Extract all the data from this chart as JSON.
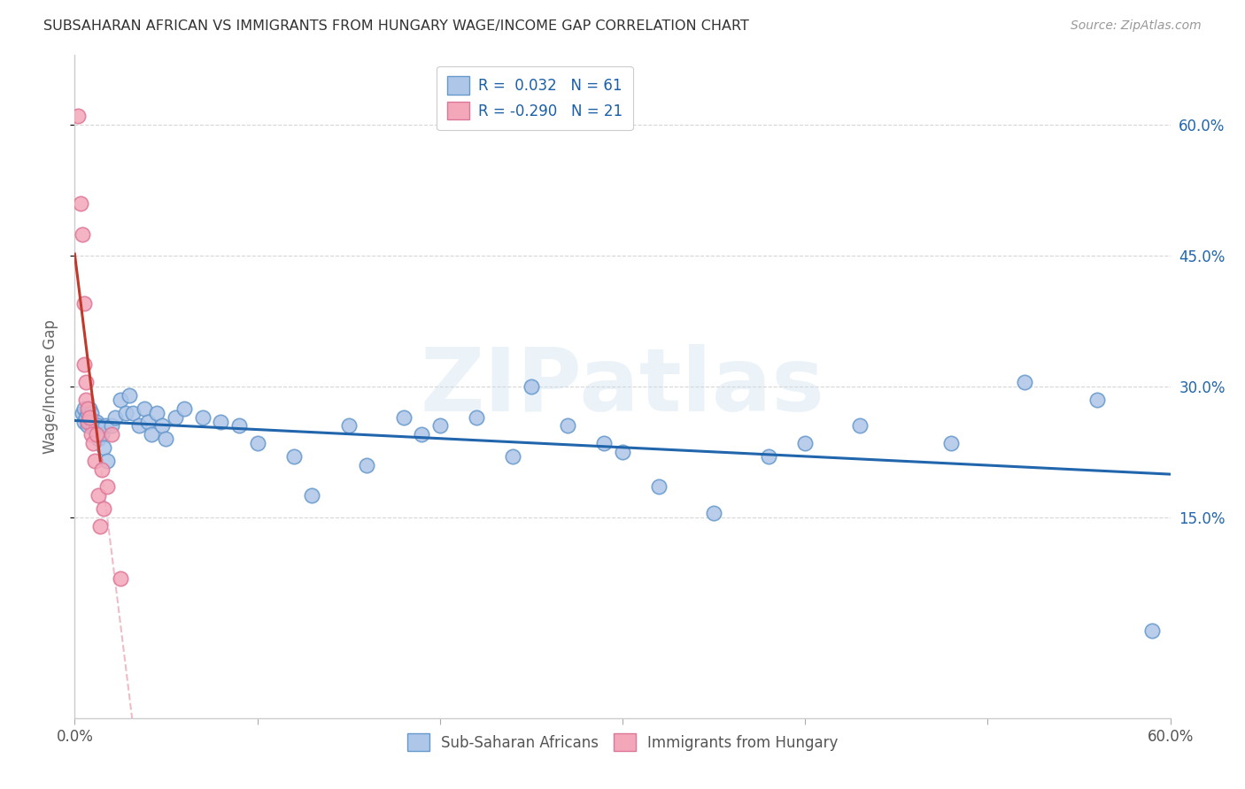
{
  "title": "SUBSAHARAN AFRICAN VS IMMIGRANTS FROM HUNGARY WAGE/INCOME GAP CORRELATION CHART",
  "source": "Source: ZipAtlas.com",
  "ylabel": "Wage/Income Gap",
  "xlim": [
    0.0,
    0.6
  ],
  "ylim": [
    -0.08,
    0.68
  ],
  "blue_scatter_x": [
    0.004,
    0.005,
    0.005,
    0.006,
    0.007,
    0.007,
    0.008,
    0.008,
    0.009,
    0.01,
    0.01,
    0.011,
    0.012,
    0.013,
    0.013,
    0.014,
    0.015,
    0.016,
    0.017,
    0.018,
    0.02,
    0.022,
    0.025,
    0.028,
    0.03,
    0.032,
    0.035,
    0.038,
    0.04,
    0.042,
    0.045,
    0.048,
    0.05,
    0.055,
    0.06,
    0.07,
    0.08,
    0.09,
    0.1,
    0.12,
    0.13,
    0.15,
    0.16,
    0.18,
    0.19,
    0.2,
    0.22,
    0.24,
    0.25,
    0.27,
    0.29,
    0.3,
    0.32,
    0.35,
    0.38,
    0.4,
    0.43,
    0.48,
    0.52,
    0.56,
    0.59
  ],
  "blue_scatter_y": [
    0.27,
    0.275,
    0.26,
    0.265,
    0.27,
    0.255,
    0.275,
    0.26,
    0.27,
    0.26,
    0.255,
    0.25,
    0.26,
    0.255,
    0.24,
    0.245,
    0.245,
    0.23,
    0.255,
    0.215,
    0.255,
    0.265,
    0.285,
    0.27,
    0.29,
    0.27,
    0.255,
    0.275,
    0.26,
    0.245,
    0.27,
    0.255,
    0.24,
    0.265,
    0.275,
    0.265,
    0.26,
    0.255,
    0.235,
    0.22,
    0.175,
    0.255,
    0.21,
    0.265,
    0.245,
    0.255,
    0.265,
    0.22,
    0.3,
    0.255,
    0.235,
    0.225,
    0.185,
    0.155,
    0.22,
    0.235,
    0.255,
    0.235,
    0.305,
    0.285,
    0.02
  ],
  "pink_scatter_x": [
    0.002,
    0.003,
    0.004,
    0.005,
    0.005,
    0.006,
    0.006,
    0.007,
    0.007,
    0.008,
    0.009,
    0.01,
    0.011,
    0.012,
    0.013,
    0.014,
    0.015,
    0.016,
    0.018,
    0.02,
    0.025
  ],
  "pink_scatter_y": [
    0.61,
    0.51,
    0.475,
    0.395,
    0.325,
    0.305,
    0.285,
    0.275,
    0.26,
    0.265,
    0.245,
    0.235,
    0.215,
    0.245,
    0.175,
    0.14,
    0.205,
    0.16,
    0.185,
    0.245,
    0.08
  ],
  "blue_line_color": "#2166ac",
  "pink_line_color": "#c0392b",
  "pink_dash_color": "#e8a0b0",
  "watermark": "ZIPatlas",
  "background_color": "#ffffff",
  "grid_color": "#bbbbbb",
  "legend1_label": "R =  0.032   N = 61",
  "legend2_label": "R = -0.290   N = 21",
  "bottom_legend1": "Sub-Saharan Africans",
  "bottom_legend2": "Immigrants from Hungary"
}
